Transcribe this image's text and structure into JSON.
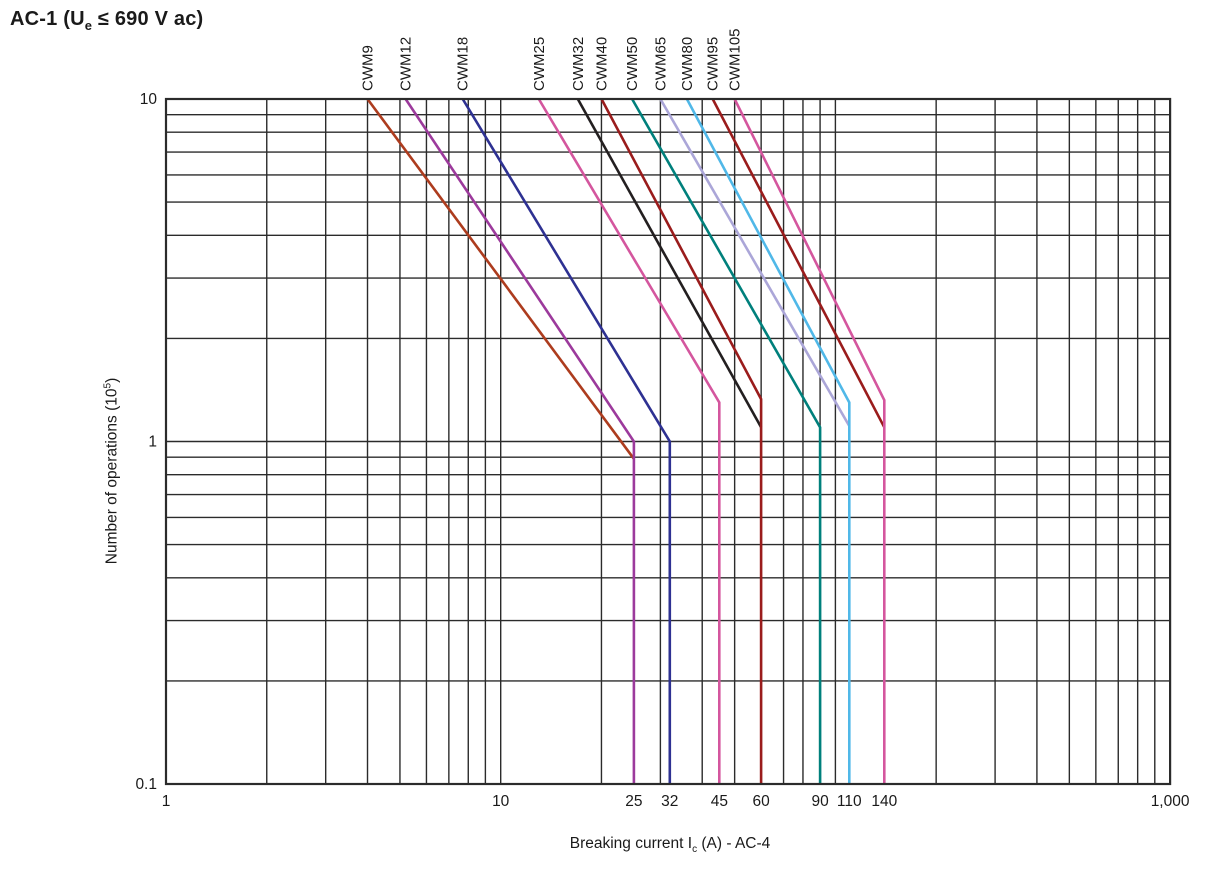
{
  "title": {
    "part1": "AC-1 (U",
    "sub": "e",
    "part2": " ≤ 690 V ac)"
  },
  "chart_data": {
    "type": "line",
    "title": "AC-1 (Ue ≤ 690 V ac)",
    "xscale": "log",
    "yscale": "log",
    "xlim": [
      1,
      1000
    ],
    "ylim": [
      0.1,
      10
    ],
    "grid": "full log grid, all minor lines, dark",
    "legend_position": "labels rotated above curve tops",
    "xlabel_parts": {
      "part1": "Breaking current I",
      "sub": "c",
      "part2": " (A) - AC-4"
    },
    "ylabel_parts": {
      "part1": "Number of operations (10",
      "sup": "5",
      "part2": ")"
    },
    "x_ticks": [
      {
        "v": 1,
        "label": "1"
      },
      {
        "v": 10,
        "label": "10"
      },
      {
        "v": 25,
        "label": "25"
      },
      {
        "v": 32,
        "label": "32"
      },
      {
        "v": 45,
        "label": "45"
      },
      {
        "v": 60,
        "label": "60"
      },
      {
        "v": 90,
        "label": "90"
      },
      {
        "v": 110,
        "label": "110"
      },
      {
        "v": 140,
        "label": "140"
      },
      {
        "v": 1000,
        "label": "1,000"
      }
    ],
    "y_ticks": [
      {
        "v": 10,
        "label": "10"
      },
      {
        "v": 1,
        "label": "1"
      },
      {
        "v": 0.1,
        "label": "0.1"
      }
    ],
    "series": [
      {
        "name": "CWM9",
        "color": "#ad3c1e",
        "points": [
          [
            4.0,
            10
          ],
          [
            25,
            0.89
          ]
        ]
      },
      {
        "name": "CWM12",
        "color": "#9c3a9c",
        "points": [
          [
            5.2,
            10
          ],
          [
            25,
            1.0
          ],
          [
            25,
            0.1
          ]
        ]
      },
      {
        "name": "CWM18",
        "color": "#2e3192",
        "points": [
          [
            7.7,
            10
          ],
          [
            32,
            1.0
          ],
          [
            32,
            0.1
          ]
        ]
      },
      {
        "name": "CWM25",
        "color": "#d4569e",
        "points": [
          [
            13,
            10
          ],
          [
            45,
            1.3
          ],
          [
            45,
            0.1
          ]
        ]
      },
      {
        "name": "CWM32",
        "color": "#231f20",
        "points": [
          [
            17,
            10
          ],
          [
            60,
            1.1
          ]
        ]
      },
      {
        "name": "CWM40",
        "color": "#9a1c1c",
        "points": [
          [
            20,
            10
          ],
          [
            60,
            1.33
          ],
          [
            60,
            0.1
          ]
        ]
      },
      {
        "name": "CWM50",
        "color": "#00807c",
        "points": [
          [
            24.7,
            10
          ],
          [
            90,
            1.1
          ],
          [
            90,
            0.1
          ]
        ]
      },
      {
        "name": "CWM65",
        "color": "#aba6d8",
        "points": [
          [
            30,
            10
          ],
          [
            110,
            1.11
          ]
        ]
      },
      {
        "name": "CWM80",
        "color": "#50b8e8",
        "points": [
          [
            36,
            10
          ],
          [
            110,
            1.3
          ],
          [
            110,
            0.1
          ]
        ]
      },
      {
        "name": "CWM95",
        "color": "#9a1c1c",
        "points": [
          [
            43,
            10
          ],
          [
            140,
            1.1
          ]
        ]
      },
      {
        "name": "CWM105",
        "color": "#d4569e",
        "points": [
          [
            50,
            10
          ],
          [
            140,
            1.32
          ],
          [
            140,
            0.1
          ]
        ]
      }
    ]
  }
}
